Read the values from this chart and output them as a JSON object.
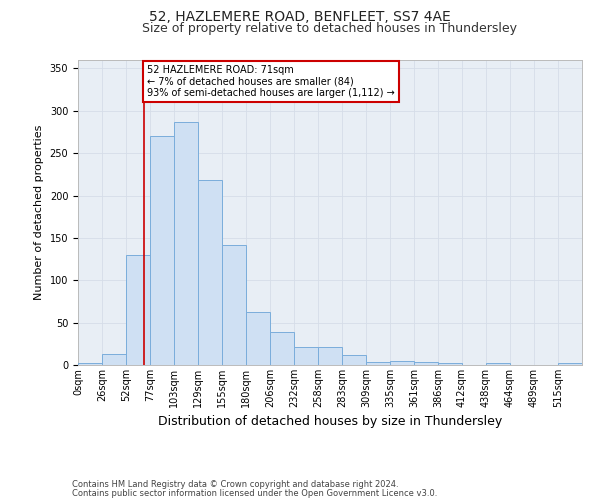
{
  "title": "52, HAZLEMERE ROAD, BENFLEET, SS7 4AE",
  "subtitle": "Size of property relative to detached houses in Thundersley",
  "xlabel": "Distribution of detached houses by size in Thundersley",
  "ylabel": "Number of detached properties",
  "footer_line1": "Contains HM Land Registry data © Crown copyright and database right 2024.",
  "footer_line2": "Contains public sector information licensed under the Open Government Licence v3.0.",
  "bin_labels": [
    "0sqm",
    "26sqm",
    "52sqm",
    "77sqm",
    "103sqm",
    "129sqm",
    "155sqm",
    "180sqm",
    "206sqm",
    "232sqm",
    "258sqm",
    "283sqm",
    "309sqm",
    "335sqm",
    "361sqm",
    "386sqm",
    "412sqm",
    "438sqm",
    "464sqm",
    "489sqm",
    "515sqm"
  ],
  "bar_heights": [
    2,
    13,
    130,
    270,
    287,
    218,
    142,
    63,
    39,
    21,
    21,
    12,
    4,
    5,
    3,
    2,
    0,
    2,
    0,
    0,
    2
  ],
  "bar_color": "#cfe0f3",
  "bar_edge_color": "#7aaddb",
  "grid_color": "#d5dde8",
  "background_color": "#e8eef5",
  "annotation_line1": "52 HAZLEMERE ROAD: 71sqm",
  "annotation_line2": "← 7% of detached houses are smaller (84)",
  "annotation_line3": "93% of semi-detached houses are larger (1,112) →",
  "annotation_box_color": "#ffffff",
  "annotation_box_edge": "#cc0000",
  "vline_x": 71,
  "vline_color": "#cc0000",
  "ylim": [
    0,
    360
  ],
  "yticks": [
    0,
    50,
    100,
    150,
    200,
    250,
    300,
    350
  ],
  "bin_width": 26,
  "title_fontsize": 10,
  "subtitle_fontsize": 9,
  "ylabel_fontsize": 8,
  "xlabel_fontsize": 9,
  "tick_fontsize": 7,
  "footer_fontsize": 6,
  "annot_fontsize": 7
}
